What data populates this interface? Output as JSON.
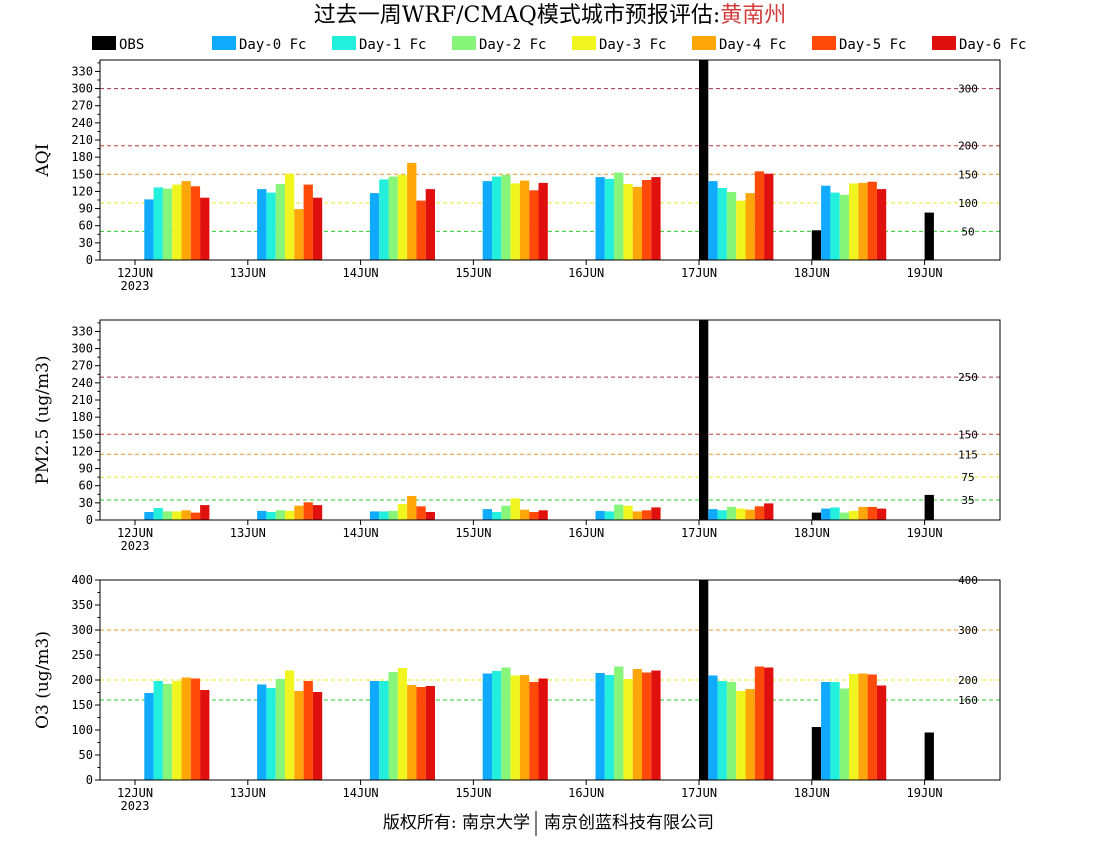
{
  "title": {
    "main": "过去一周WRF/CMAQ模式城市预报评估:",
    "city": "黄南州",
    "city_color": "#d43c3c"
  },
  "footer": {
    "left": "版权所有: 南京大学",
    "right": "南京创蓝科技有限公司"
  },
  "colors": {
    "OBS": "#000000",
    "Day-0 Fc": "#10aaff",
    "Day-1 Fc": "#22f0dc",
    "Day-2 Fc": "#86f57a",
    "Day-3 Fc": "#f0f520",
    "Day-4 Fc": "#ffa60a",
    "Day-5 Fc": "#ff4a0a",
    "Day-6 Fc": "#e0100f"
  },
  "chart_data": [
    {
      "type": "bar",
      "ylabel": "AQI",
      "ylim": [
        0,
        350
      ],
      "yticks": [
        0,
        30,
        60,
        90,
        120,
        150,
        180,
        210,
        240,
        270,
        300,
        330
      ],
      "categories": [
        "12JUN",
        "13JUN",
        "14JUN",
        "15JUN",
        "16JUN",
        "17JUN",
        "18JUN",
        "19JUN"
      ],
      "first_category_sublabel": "2023",
      "ref_lines": [
        {
          "value": 50,
          "label": "50",
          "color": "#2ec82e"
        },
        {
          "value": 100,
          "label": "100",
          "color": "#e8e830"
        },
        {
          "value": 150,
          "label": "150",
          "color": "#e89820"
        },
        {
          "value": 200,
          "label": "200",
          "color": "#c83c3c"
        },
        {
          "value": 300,
          "label": "300",
          "color": "#a03060"
        }
      ],
      "series": [
        {
          "name": "OBS",
          "values": [
            null,
            null,
            null,
            null,
            null,
            350,
            52,
            83
          ]
        },
        {
          "name": "Day-0 Fc",
          "values": [
            106,
            124,
            117,
            138,
            145,
            138,
            130,
            null
          ]
        },
        {
          "name": "Day-1 Fc",
          "values": [
            127,
            118,
            141,
            146,
            142,
            126,
            118,
            null
          ]
        },
        {
          "name": "Day-2 Fc",
          "values": [
            125,
            133,
            146,
            149,
            153,
            119,
            114,
            null
          ]
        },
        {
          "name": "Day-3 Fc",
          "values": [
            132,
            151,
            149,
            134,
            133,
            104,
            134,
            null
          ]
        },
        {
          "name": "Day-4 Fc",
          "values": [
            138,
            89,
            170,
            139,
            128,
            117,
            135,
            null
          ]
        },
        {
          "name": "Day-5 Fc",
          "values": [
            129,
            132,
            104,
            122,
            140,
            155,
            137,
            null
          ]
        },
        {
          "name": "Day-6 Fc",
          "values": [
            109,
            109,
            124,
            135,
            145,
            151,
            124,
            null
          ]
        }
      ]
    },
    {
      "type": "bar",
      "ylabel": "PM2.5 (ug/m3)",
      "ylim": [
        0,
        350
      ],
      "yticks": [
        0,
        30,
        60,
        90,
        120,
        150,
        180,
        210,
        240,
        270,
        300,
        330
      ],
      "categories": [
        "12JUN",
        "13JUN",
        "14JUN",
        "15JUN",
        "16JUN",
        "17JUN",
        "18JUN",
        "19JUN"
      ],
      "first_category_sublabel": "2023",
      "ref_lines": [
        {
          "value": 35,
          "label": "35",
          "color": "#2ec82e"
        },
        {
          "value": 75,
          "label": "75",
          "color": "#e8e830"
        },
        {
          "value": 115,
          "label": "115",
          "color": "#e89820"
        },
        {
          "value": 150,
          "label": "150",
          "color": "#c83c3c"
        },
        {
          "value": 250,
          "label": "250",
          "color": "#a03060"
        }
      ],
      "series": [
        {
          "name": "OBS",
          "values": [
            null,
            null,
            null,
            null,
            null,
            350,
            13,
            44
          ]
        },
        {
          "name": "Day-0 Fc",
          "values": [
            14,
            16,
            15,
            19,
            16,
            19,
            20,
            null
          ]
        },
        {
          "name": "Day-1 Fc",
          "values": [
            21,
            14,
            15,
            14,
            15,
            17,
            22,
            null
          ]
        },
        {
          "name": "Day-2 Fc",
          "values": [
            15,
            17,
            16,
            25,
            27,
            23,
            13,
            null
          ]
        },
        {
          "name": "Day-3 Fc",
          "values": [
            15,
            16,
            28,
            38,
            25,
            20,
            16,
            null
          ]
        },
        {
          "name": "Day-4 Fc",
          "values": [
            17,
            25,
            42,
            18,
            15,
            18,
            23,
            null
          ]
        },
        {
          "name": "Day-5 Fc",
          "values": [
            13,
            31,
            24,
            14,
            17,
            24,
            23,
            null
          ]
        },
        {
          "name": "Day-6 Fc",
          "values": [
            26,
            26,
            14,
            17,
            22,
            29,
            20,
            null
          ]
        }
      ]
    },
    {
      "type": "bar",
      "ylabel": "O3 (ug/m3)",
      "ylim": [
        0,
        400
      ],
      "yticks": [
        0,
        50,
        100,
        150,
        200,
        250,
        300,
        350,
        400
      ],
      "categories": [
        "12JUN",
        "13JUN",
        "14JUN",
        "15JUN",
        "16JUN",
        "17JUN",
        "18JUN",
        "19JUN"
      ],
      "first_category_sublabel": "2023",
      "ref_lines": [
        {
          "value": 160,
          "label": "160",
          "color": "#2ec82e"
        },
        {
          "value": 200,
          "label": "200",
          "color": "#e8e830"
        },
        {
          "value": 300,
          "label": "300",
          "color": "#e89820"
        },
        {
          "value": 400,
          "label": "400",
          "color": "#c83c3c"
        }
      ],
      "series": [
        {
          "name": "OBS",
          "values": [
            null,
            null,
            null,
            null,
            null,
            400,
            106,
            95
          ]
        },
        {
          "name": "Day-0 Fc",
          "values": [
            174,
            191,
            198,
            213,
            214,
            209,
            196,
            null
          ]
        },
        {
          "name": "Day-1 Fc",
          "values": [
            198,
            184,
            198,
            218,
            210,
            198,
            196,
            null
          ]
        },
        {
          "name": "Day-2 Fc",
          "values": [
            192,
            202,
            216,
            225,
            227,
            196,
            183,
            null
          ]
        },
        {
          "name": "Day-3 Fc",
          "values": [
            198,
            219,
            224,
            209,
            202,
            178,
            212,
            null
          ]
        },
        {
          "name": "Day-4 Fc",
          "values": [
            205,
            178,
            190,
            210,
            222,
            182,
            213,
            null
          ]
        },
        {
          "name": "Day-5 Fc",
          "values": [
            203,
            198,
            186,
            196,
            215,
            227,
            211,
            null
          ]
        },
        {
          "name": "Day-6 Fc",
          "values": [
            180,
            176,
            188,
            203,
            219,
            225,
            189,
            null
          ]
        }
      ]
    }
  ]
}
